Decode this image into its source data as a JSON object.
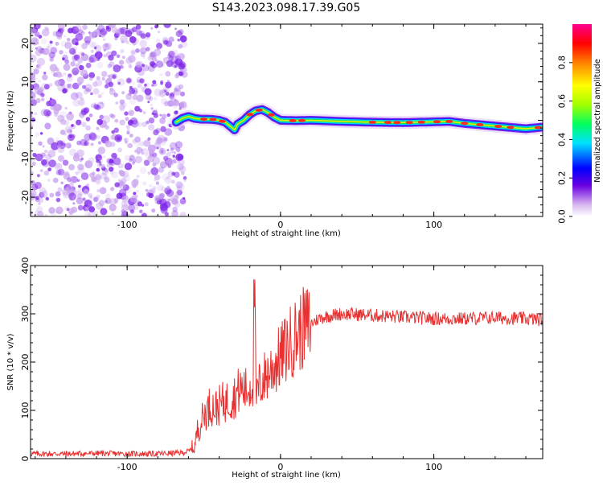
{
  "figure": {
    "title": "S143.2023.098.17.39.G05"
  },
  "chart_data": [
    {
      "type": "heatmap",
      "xlabel": "Height of straight line (km)",
      "ylabel": "Frequency (Hz)",
      "xlim": [
        -163,
        171
      ],
      "ylim": [
        -25,
        25
      ],
      "xticks": [
        -100,
        0,
        100
      ],
      "yticks": [
        -20,
        -10,
        0,
        10,
        20
      ],
      "grid": false,
      "colorbar": {
        "label": "Normalized spectral amplitude",
        "range": [
          0,
          1
        ],
        "ticks": [
          0.0,
          0.2,
          0.4,
          0.6,
          0.8
        ]
      },
      "ridge": {
        "x": [
          -68,
          -64,
          -60,
          -56,
          -52,
          -48,
          -44,
          -40,
          -36,
          -32,
          -30,
          -28,
          -24,
          -20,
          -16,
          -12,
          -8,
          -4,
          0,
          10,
          20,
          40,
          60,
          80,
          100,
          110,
          120,
          140,
          160,
          170
        ],
        "y": [
          -0.5,
          0.5,
          1.0,
          0.5,
          0.3,
          0.3,
          0.2,
          0.0,
          -0.5,
          -1.8,
          -2.5,
          -1.0,
          0.0,
          1.5,
          2.5,
          2.8,
          2.0,
          0.8,
          0.0,
          -0.1,
          0.0,
          -0.3,
          -0.5,
          -0.6,
          -0.4,
          -0.3,
          -0.8,
          -1.5,
          -2.2,
          -1.8
        ]
      },
      "noise_region_x": [
        -163,
        -68
      ]
    },
    {
      "type": "line",
      "xlabel": "Height of straight line (km)",
      "ylabel": "SNR (10 * v/v)",
      "xlim": [
        -163,
        171
      ],
      "ylim": [
        0,
        400
      ],
      "xticks": [
        -100,
        0,
        100
      ],
      "yticks": [
        0,
        100,
        200,
        300,
        400
      ],
      "grid": false,
      "series": [
        {
          "color": "#e83030",
          "x": [
            -163,
            -140,
            -120,
            -100,
            -80,
            -65,
            -60,
            -56,
            -54,
            -50,
            -46,
            -42,
            -38,
            -34,
            -30,
            -26,
            -22,
            -20,
            -18,
            -17,
            -16,
            -14,
            -10,
            -5,
            0,
            5,
            10,
            15,
            20,
            25,
            30,
            40,
            60,
            80,
            100,
            120,
            140,
            160,
            171
          ],
          "y": [
            10,
            10,
            11,
            10,
            10,
            12,
            15,
            25,
            60,
            90,
            110,
            105,
            115,
            120,
            130,
            145,
            140,
            150,
            160,
            380,
            120,
            150,
            170,
            190,
            210,
            235,
            255,
            270,
            280,
            290,
            295,
            300,
            297,
            293,
            290,
            290,
            292,
            290,
            288
          ]
        }
      ]
    }
  ]
}
